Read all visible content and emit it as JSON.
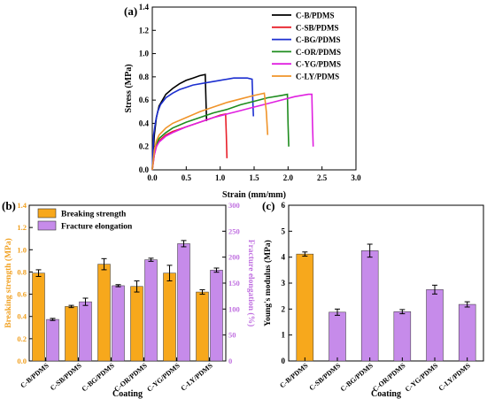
{
  "chart_data": [
    {
      "type": "line",
      "panel_label": "(a)",
      "xlabel": "Strain (mm/mm)",
      "ylabel": "Stress (MPa)",
      "xlim": [
        0,
        3.0
      ],
      "ylim": [
        0,
        1.4
      ],
      "xticks": [
        "0.0",
        "0.5",
        "1.0",
        "1.5",
        "2.0",
        "2.5",
        "3.0"
      ],
      "yticks": [
        "0.0",
        "0.2",
        "0.4",
        "0.6",
        "0.8",
        "1.0",
        "1.2",
        "1.4"
      ],
      "legend_position": "top-right",
      "series": [
        {
          "name": "C-B/PDMS",
          "color": "#000000",
          "x": [
            0,
            0.03,
            0.06,
            0.1,
            0.15,
            0.2,
            0.3,
            0.4,
            0.5,
            0.6,
            0.7,
            0.78,
            0.79,
            0.8
          ],
          "y": [
            0,
            0.3,
            0.45,
            0.55,
            0.6,
            0.65,
            0.7,
            0.74,
            0.77,
            0.79,
            0.81,
            0.82,
            0.6,
            0.42
          ]
        },
        {
          "name": "C-SB/PDMS",
          "color": "#e8202a",
          "x": [
            0,
            0.03,
            0.06,
            0.1,
            0.2,
            0.3,
            0.4,
            0.5,
            0.6,
            0.7,
            0.8,
            0.9,
            1.0,
            1.08,
            1.09,
            1.1
          ],
          "y": [
            0,
            0.13,
            0.2,
            0.25,
            0.3,
            0.33,
            0.35,
            0.37,
            0.39,
            0.41,
            0.43,
            0.45,
            0.47,
            0.48,
            0.3,
            0.1
          ]
        },
        {
          "name": "C-BG/PDMS",
          "color": "#1c2fd0",
          "x": [
            0,
            0.02,
            0.05,
            0.08,
            0.12,
            0.2,
            0.3,
            0.4,
            0.5,
            0.6,
            0.8,
            1.0,
            1.2,
            1.4,
            1.47,
            1.48,
            1.49
          ],
          "y": [
            0,
            0.3,
            0.42,
            0.5,
            0.56,
            0.62,
            0.66,
            0.69,
            0.71,
            0.73,
            0.75,
            0.77,
            0.79,
            0.79,
            0.78,
            0.6,
            0.46
          ]
        },
        {
          "name": "C-OR/PDMS",
          "color": "#1e8c1e",
          "x": [
            0,
            0.03,
            0.06,
            0.1,
            0.2,
            0.3,
            0.5,
            0.7,
            0.9,
            1.1,
            1.3,
            1.5,
            1.7,
            1.9,
            1.99,
            2.0,
            2.01
          ],
          "y": [
            0,
            0.15,
            0.22,
            0.27,
            0.32,
            0.36,
            0.41,
            0.45,
            0.49,
            0.52,
            0.56,
            0.59,
            0.62,
            0.64,
            0.65,
            0.4,
            0.2
          ]
        },
        {
          "name": "C-YG/PDMS",
          "color": "#e020e0",
          "x": [
            0,
            0.03,
            0.06,
            0.1,
            0.2,
            0.3,
            0.5,
            0.7,
            0.9,
            1.1,
            1.3,
            1.5,
            1.7,
            1.9,
            2.1,
            2.3,
            2.35,
            2.36,
            2.37
          ],
          "y": [
            0,
            0.13,
            0.2,
            0.24,
            0.29,
            0.32,
            0.37,
            0.41,
            0.45,
            0.48,
            0.51,
            0.54,
            0.57,
            0.6,
            0.63,
            0.65,
            0.65,
            0.4,
            0.2
          ]
        },
        {
          "name": "C-LY/PDMS",
          "color": "#f0942a",
          "x": [
            0,
            0.03,
            0.06,
            0.1,
            0.2,
            0.3,
            0.5,
            0.7,
            0.9,
            1.1,
            1.3,
            1.5,
            1.65,
            1.68,
            1.7
          ],
          "y": [
            0,
            0.17,
            0.25,
            0.3,
            0.36,
            0.4,
            0.45,
            0.5,
            0.54,
            0.58,
            0.61,
            0.64,
            0.66,
            0.5,
            0.3
          ]
        }
      ]
    },
    {
      "type": "bar",
      "panel_label": "(b)",
      "xlabel": "Coating",
      "ylabel": "Breaking strength (MPa)",
      "y2label": "Fracture elongation (%)",
      "ylim": [
        0,
        1.4
      ],
      "y2lim": [
        0,
        300
      ],
      "yticks": [
        "0.0",
        "0.2",
        "0.4",
        "0.6",
        "0.8",
        "1.0",
        "1.2",
        "1.4"
      ],
      "y2ticks": [
        "0",
        "50",
        "100",
        "150",
        "200",
        "250",
        "300"
      ],
      "categories": [
        "C-B/PDMS",
        "C-SB/PDMS",
        "C-BG/PDMS",
        "C-OR/PDMS",
        "C-YG/PDMS",
        "C-LY/PDMS"
      ],
      "legend_position": "top-left",
      "series": [
        {
          "name": "Breaking strength",
          "color": "#f7a81c",
          "axis": "left",
          "values": [
            0.79,
            0.49,
            0.87,
            0.67,
            0.79,
            0.62
          ],
          "errors": [
            0.03,
            0.01,
            0.05,
            0.05,
            0.07,
            0.02
          ]
        },
        {
          "name": "Fracture elongation",
          "color": "#c68bea",
          "axis": "right",
          "values": [
            80,
            114,
            145,
            195,
            226,
            175
          ],
          "errors": [
            2,
            7,
            2,
            3,
            6,
            4
          ]
        }
      ]
    },
    {
      "type": "bar",
      "panel_label": "(c)",
      "xlabel": "Coating",
      "ylabel": "Young's modulus (MPa)",
      "ylim": [
        0,
        6
      ],
      "yticks": [
        "0",
        "1",
        "2",
        "3",
        "4",
        "5",
        "6"
      ],
      "categories": [
        "C-B/PDMS",
        "C-SB/PDMS",
        "C-BG/PDMS",
        "C-OR/PDMS",
        "C-YG/PDMS",
        "C-LY/PDMS"
      ],
      "series": [
        {
          "name": "",
          "colors": [
            "#f7a81c",
            "#c68bea",
            "#c68bea",
            "#c68bea",
            "#c68bea",
            "#c68bea"
          ],
          "values": [
            4.12,
            1.88,
            4.25,
            1.9,
            2.75,
            2.18
          ],
          "errors": [
            0.08,
            0.12,
            0.25,
            0.08,
            0.17,
            0.1
          ]
        }
      ]
    }
  ]
}
